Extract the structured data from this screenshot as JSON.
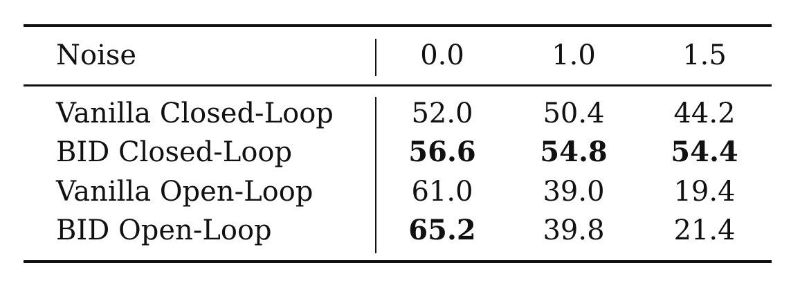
{
  "table": {
    "header": {
      "label": "Noise",
      "columns": [
        "0.0",
        "1.0",
        "1.5"
      ]
    },
    "rows": [
      {
        "label": "Vanilla Closed-Loop",
        "values": [
          "52.0",
          "50.4",
          "44.2"
        ],
        "bold": [
          false,
          false,
          false
        ]
      },
      {
        "label": "BID Closed-Loop",
        "values": [
          "56.6",
          "54.8",
          "54.4"
        ],
        "bold": [
          true,
          true,
          true
        ]
      },
      {
        "label": "Vanilla Open-Loop",
        "values": [
          "61.0",
          "39.0",
          "19.4"
        ],
        "bold": [
          false,
          false,
          false
        ]
      },
      {
        "label": "BID Open-Loop",
        "values": [
          "65.2",
          "39.8",
          "21.4"
        ],
        "bold": [
          true,
          false,
          false
        ]
      }
    ]
  }
}
